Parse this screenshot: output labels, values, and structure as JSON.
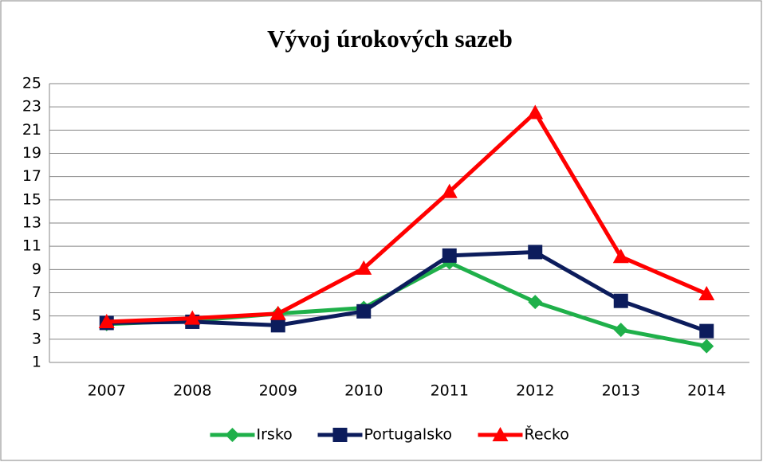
{
  "chart_data": {
    "type": "line",
    "title": "Vývoj úrokových sazeb",
    "categories": [
      "2007",
      "2008",
      "2009",
      "2010",
      "2011",
      "2012",
      "2013",
      "2014"
    ],
    "series": [
      {
        "name": "Irsko",
        "color": "#1fb04a",
        "marker": "diamond",
        "values": [
          4.3,
          4.6,
          5.2,
          5.7,
          9.6,
          6.2,
          3.8,
          2.4
        ]
      },
      {
        "name": "Portugalsko",
        "color": "#0c1c5c",
        "marker": "square",
        "values": [
          4.4,
          4.5,
          4.2,
          5.4,
          10.2,
          10.5,
          6.3,
          3.7
        ]
      },
      {
        "name": "Řecko",
        "color": "#ff0000",
        "marker": "triangle",
        "values": [
          4.5,
          4.8,
          5.2,
          9.1,
          15.7,
          22.5,
          10.1,
          6.9
        ]
      }
    ],
    "ylim": [
      1,
      25
    ],
    "yticks": [
      1,
      3,
      5,
      7,
      9,
      11,
      13,
      15,
      17,
      19,
      21,
      23,
      25
    ],
    "grid": true,
    "legend": "bottom"
  }
}
